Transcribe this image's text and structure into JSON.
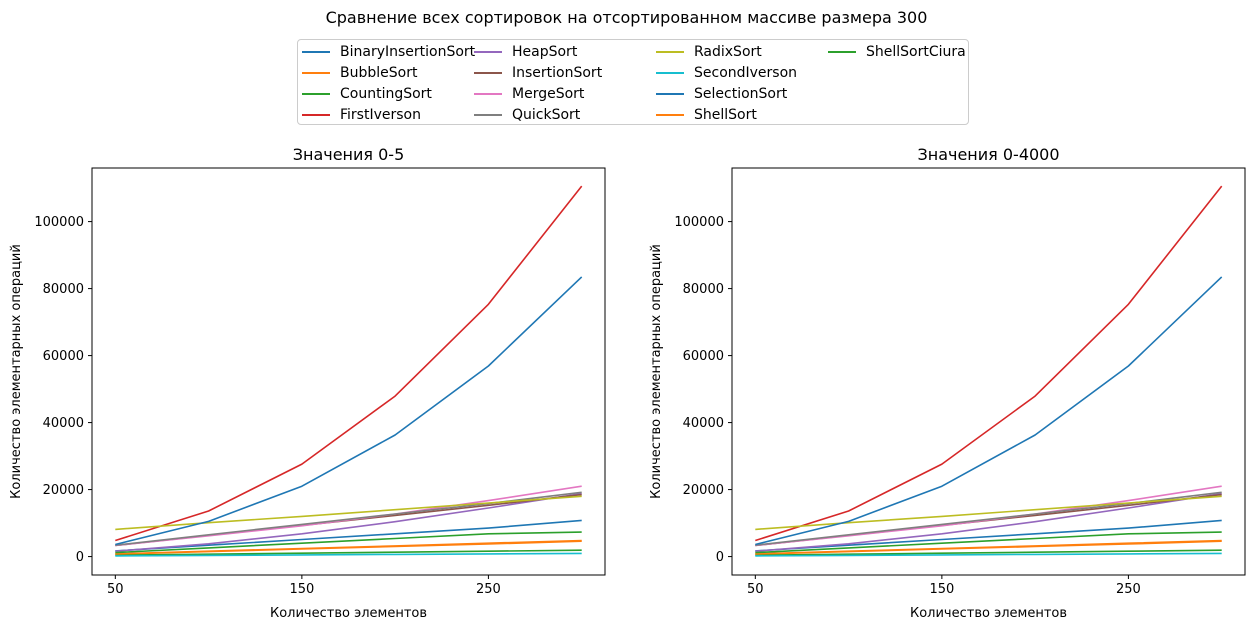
{
  "figure_title": "Сравнение всех сортировок на отсортированном массиве размера 300",
  "legend": [
    {
      "name": "BinaryInsertionSort",
      "color": "#1f77b4"
    },
    {
      "name": "BubbleSort",
      "color": "#ff7f0e"
    },
    {
      "name": "CountingSort",
      "color": "#2ca02c"
    },
    {
      "name": "FirstIverson",
      "color": "#d62728"
    },
    {
      "name": "HeapSort",
      "color": "#9467bd"
    },
    {
      "name": "InsertionSort",
      "color": "#8c564b"
    },
    {
      "name": "MergeSort",
      "color": "#e377c2"
    },
    {
      "name": "QuickSort",
      "color": "#7f7f7f"
    },
    {
      "name": "RadixSort",
      "color": "#bcbd22"
    },
    {
      "name": "SecondIverson",
      "color": "#17becf"
    },
    {
      "name": "SelectionSort",
      "color": "#1f77b4"
    },
    {
      "name": "ShellSort",
      "color": "#ff7f0e"
    },
    {
      "name": "ShellSortCiura",
      "color": "#2ca02c"
    }
  ],
  "chart_data": [
    {
      "type": "line",
      "title": "Значения 0-5",
      "xlabel": "Количество элементов",
      "ylabel": "Количество элементарных операций",
      "xlim": [
        37.5,
        312.5
      ],
      "ylim": [
        -5500,
        116000
      ],
      "xticks": [
        50,
        150,
        250
      ],
      "yticks": [
        0,
        20000,
        40000,
        60000,
        80000,
        100000
      ],
      "x": [
        50,
        100,
        150,
        200,
        250,
        300
      ],
      "series": [
        {
          "name": "BinaryInsertionSort",
          "color": "#1f77b4",
          "values": [
            1700,
            3400,
            5100,
            6800,
            8500,
            10800
          ]
        },
        {
          "name": "BubbleSort",
          "color": "#ff7f0e",
          "values": [
            750,
            1500,
            2250,
            3000,
            3750,
            4600
          ]
        },
        {
          "name": "CountingSort",
          "color": "#2ca02c",
          "values": [
            400,
            700,
            1000,
            1300,
            1600,
            1900
          ]
        },
        {
          "name": "FirstIverson",
          "color": "#d62728",
          "values": [
            4800,
            13600,
            27600,
            47900,
            75300,
            110600
          ]
        },
        {
          "name": "HeapSort",
          "color": "#9467bd",
          "values": [
            1600,
            3800,
            6800,
            10400,
            14500,
            18800
          ]
        },
        {
          "name": "InsertionSort",
          "color": "#8c564b",
          "values": [
            3300,
            6300,
            9300,
            12300,
            15300,
            18500
          ]
        },
        {
          "name": "MergeSort",
          "color": "#e377c2",
          "values": [
            3300,
            6200,
            9200,
            12700,
            16700,
            21000
          ]
        },
        {
          "name": "QuickSort",
          "color": "#7f7f7f",
          "values": [
            3400,
            6500,
            9600,
            12700,
            15800,
            19200
          ]
        },
        {
          "name": "RadixSort",
          "color": "#bcbd22",
          "values": [
            8100,
            10100,
            12000,
            14000,
            16000,
            18000
          ]
        },
        {
          "name": "SecondIverson",
          "color": "#17becf",
          "values": [
            200,
            350,
            500,
            650,
            800,
            950
          ]
        },
        {
          "name": "SelectionSort",
          "color": "#1f77b4",
          "values": [
            3600,
            10500,
            21000,
            36300,
            56900,
            83500
          ]
        },
        {
          "name": "ShellSort",
          "color": "#ff7f0e",
          "values": [
            800,
            1600,
            2400,
            3200,
            4000,
            4800
          ]
        },
        {
          "name": "ShellSortCiura",
          "color": "#2ca02c",
          "values": [
            1200,
            2600,
            4000,
            5400,
            6800,
            7300
          ]
        }
      ]
    },
    {
      "type": "line",
      "title": "Значения 0-4000",
      "xlabel": "Количество элементов",
      "ylabel": "Количество элементарных операций",
      "xlim": [
        37.5,
        312.5
      ],
      "ylim": [
        -5500,
        116000
      ],
      "xticks": [
        50,
        150,
        250
      ],
      "yticks": [
        0,
        20000,
        40000,
        60000,
        80000,
        100000
      ],
      "x": [
        50,
        100,
        150,
        200,
        250,
        300
      ],
      "series": [
        {
          "name": "BinaryInsertionSort",
          "color": "#1f77b4",
          "values": [
            1700,
            3400,
            5100,
            6800,
            8500,
            10800
          ]
        },
        {
          "name": "BubbleSort",
          "color": "#ff7f0e",
          "values": [
            750,
            1500,
            2250,
            3000,
            3750,
            4600
          ]
        },
        {
          "name": "CountingSort",
          "color": "#2ca02c",
          "values": [
            400,
            700,
            1000,
            1300,
            1600,
            1900
          ]
        },
        {
          "name": "FirstIverson",
          "color": "#d62728",
          "values": [
            4800,
            13600,
            27600,
            47900,
            75300,
            110600
          ]
        },
        {
          "name": "HeapSort",
          "color": "#9467bd",
          "values": [
            1600,
            3800,
            6800,
            10400,
            14500,
            18800
          ]
        },
        {
          "name": "InsertionSort",
          "color": "#8c564b",
          "values": [
            3300,
            6300,
            9300,
            12300,
            15300,
            18500
          ]
        },
        {
          "name": "MergeSort",
          "color": "#e377c2",
          "values": [
            3300,
            6200,
            9200,
            12700,
            16700,
            21000
          ]
        },
        {
          "name": "QuickSort",
          "color": "#7f7f7f",
          "values": [
            3400,
            6500,
            9600,
            12700,
            15800,
            19200
          ]
        },
        {
          "name": "RadixSort",
          "color": "#bcbd22",
          "values": [
            8100,
            10100,
            12000,
            14000,
            16000,
            18000
          ]
        },
        {
          "name": "SecondIverson",
          "color": "#17becf",
          "values": [
            200,
            350,
            500,
            650,
            800,
            950
          ]
        },
        {
          "name": "SelectionSort",
          "color": "#1f77b4",
          "values": [
            3600,
            10500,
            21000,
            36300,
            56900,
            83500
          ]
        },
        {
          "name": "ShellSort",
          "color": "#ff7f0e",
          "values": [
            800,
            1600,
            2400,
            3200,
            4000,
            4800
          ]
        },
        {
          "name": "ShellSortCiura",
          "color": "#2ca02c",
          "values": [
            1200,
            2600,
            4000,
            5400,
            6800,
            7300
          ]
        }
      ]
    }
  ]
}
